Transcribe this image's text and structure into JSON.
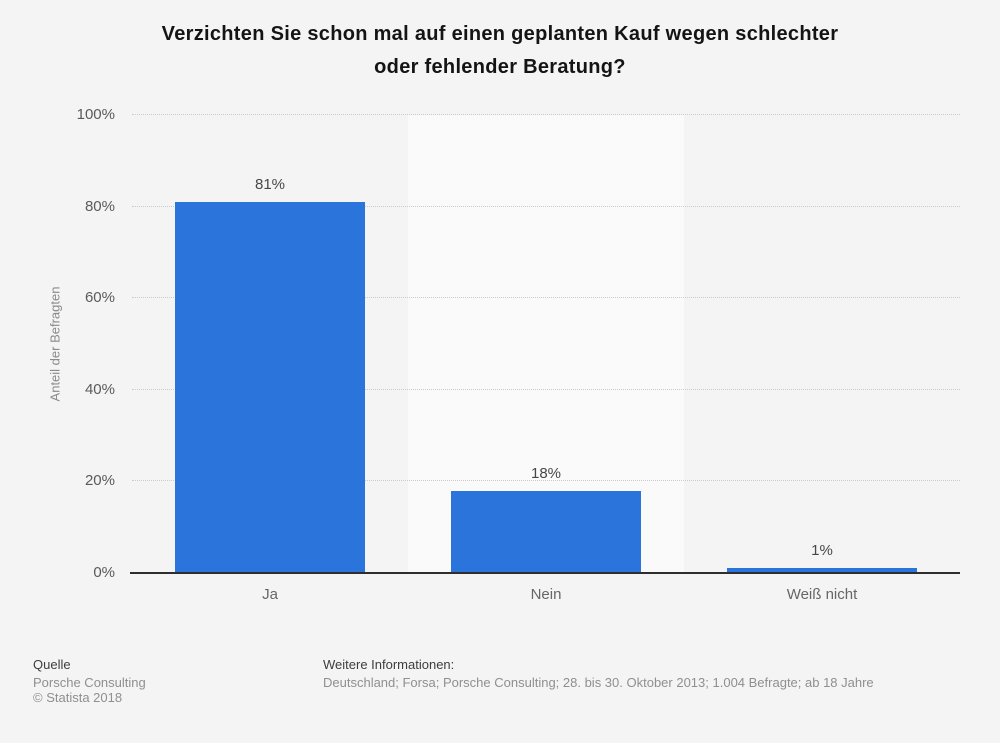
{
  "title": {
    "line1": "Verzichten Sie schon mal auf einen geplanten Kauf wegen schlechter",
    "line2": "oder fehlender Beratung?"
  },
  "chart_data": {
    "type": "bar",
    "title": "Verzichten Sie schon mal auf einen geplanten Kauf wegen schlechter oder fehlender Beratung?",
    "categories": [
      "Ja",
      "Nein",
      "Weiß nicht"
    ],
    "values": [
      81,
      18,
      1
    ],
    "value_labels": [
      "81%",
      "18%",
      "1%"
    ],
    "xlabel": "",
    "ylabel": "Anteil der Befragten",
    "ylim": [
      0,
      100
    ],
    "yticks": [
      0,
      20,
      40,
      60,
      80,
      100
    ],
    "ytick_labels": [
      "0%",
      "20%",
      "40%",
      "60%",
      "80%",
      "100%"
    ],
    "grid": "horizontal-dotted",
    "legend": "none",
    "bar_color": "#2b74db",
    "plot_band_colors": [
      "#f4f4f4",
      "#fafafa",
      "#f4f4f4"
    ],
    "gridline_color": "#cbcbcb",
    "axis_line_color": "#2e2e2e",
    "background_color": "#f4f4f4"
  },
  "footer": {
    "source_label": "Quelle",
    "source_lines": [
      "Porsche Consulting",
      "© Statista 2018"
    ],
    "info_label": "Weitere Informationen:",
    "info_text": "Deutschland; Forsa; Porsche Consulting; 28. bis 30. Oktober 2013; 1.004 Befragte; ab 18 Jahre"
  }
}
